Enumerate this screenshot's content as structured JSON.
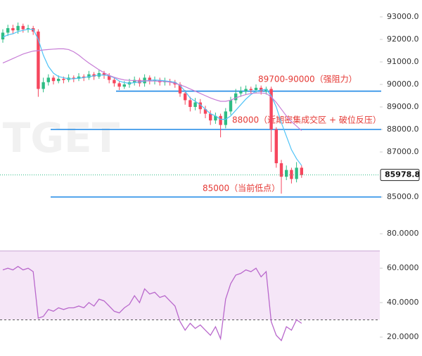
{
  "chart_data": [
    {
      "type": "candlestick",
      "watermark": "BITGET",
      "open": [
        92000,
        92300,
        92500,
        92400,
        92600,
        92450,
        92500,
        92350,
        89800,
        90100,
        90300,
        90150,
        90250,
        90200,
        90300,
        90250,
        90350,
        90300,
        90450,
        90350,
        90500,
        90400,
        90200,
        90050,
        89900,
        90000,
        90100,
        90200,
        90050,
        90300,
        90150,
        90200,
        90100,
        90150,
        90100,
        90000,
        89600,
        89300,
        89000,
        89200,
        88900,
        88700,
        88400,
        88600,
        88200,
        88800,
        89300,
        89600,
        89700,
        89800,
        89750,
        89850,
        89700,
        89800,
        88000,
        86500,
        85900,
        86200,
        85800,
        86300
      ],
      "high": [
        92450,
        92650,
        92650,
        92750,
        92700,
        92650,
        92600,
        92450,
        90300,
        90450,
        90400,
        90400,
        90350,
        90450,
        90400,
        90500,
        90450,
        90600,
        90550,
        90650,
        90600,
        90500,
        90300,
        90150,
        90150,
        90250,
        90350,
        90300,
        90450,
        90400,
        90350,
        90300,
        90300,
        90250,
        90200,
        90100,
        89750,
        89450,
        89400,
        89350,
        89050,
        88850,
        88750,
        88700,
        88950,
        89450,
        89800,
        89900,
        89950,
        89900,
        90000,
        89950,
        89900,
        89900,
        88100,
        86650,
        86400,
        86300,
        86550,
        86400
      ],
      "low": [
        91850,
        92150,
        92250,
        92250,
        92300,
        92300,
        92200,
        89450,
        89650,
        89950,
        90000,
        90050,
        90050,
        90100,
        90100,
        90150,
        90150,
        90200,
        90200,
        90250,
        90250,
        90050,
        89900,
        89750,
        89800,
        89850,
        89950,
        89900,
        89900,
        90000,
        90000,
        89950,
        89950,
        89950,
        89850,
        89450,
        89100,
        88800,
        88850,
        88700,
        88500,
        88200,
        88250,
        87650,
        88050,
        88650,
        89150,
        89450,
        89550,
        89600,
        89600,
        89550,
        89550,
        87000,
        86300,
        85150,
        85750,
        85600,
        85650,
        85850
      ],
      "close": [
        92300,
        92500,
        92400,
        92600,
        92450,
        92500,
        92350,
        89800,
        90100,
        90300,
        90150,
        90250,
        90200,
        90300,
        90250,
        90350,
        90300,
        90450,
        90350,
        90500,
        90400,
        90200,
        90050,
        89900,
        90000,
        90100,
        90200,
        90050,
        90300,
        90150,
        90200,
        90100,
        90150,
        90100,
        90000,
        89600,
        89300,
        89000,
        89200,
        88900,
        88700,
        88400,
        88600,
        88200,
        88800,
        89300,
        89600,
        89700,
        89800,
        89750,
        89850,
        89700,
        89800,
        88000,
        86500,
        85900,
        86200,
        85800,
        86300,
        85978.8
      ],
      "up_color": "#2ebd85",
      "down_color": "#f6465d",
      "overlays": [
        {
          "color": "#4fc3f7",
          "values": [
            92100,
            92200,
            92250,
            92350,
            92400,
            92450,
            92450,
            92000,
            91300,
            90800,
            90500,
            90350,
            90300,
            90250,
            90250,
            90280,
            90300,
            90350,
            90380,
            90420,
            90420,
            90380,
            90300,
            90150,
            90080,
            90050,
            90080,
            90100,
            90150,
            90180,
            90200,
            90180,
            90160,
            90130,
            90100,
            89950,
            89700,
            89400,
            89250,
            89100,
            88900,
            88700,
            88600,
            88450,
            88450,
            88600,
            88850,
            89100,
            89350,
            89550,
            89700,
            89750,
            89780,
            89500,
            89000,
            88300,
            87700,
            87100,
            86700,
            86400
          ]
        },
        {
          "color": "#c77dd6",
          "values": [
            90950,
            91050,
            91150,
            91250,
            91350,
            91420,
            91480,
            91500,
            91530,
            91550,
            91570,
            91580,
            91580,
            91550,
            91450,
            91300,
            91120,
            90950,
            90800,
            90650,
            90520,
            90400,
            90320,
            90250,
            90200,
            90180,
            90170,
            90160,
            90160,
            90150,
            90150,
            90140,
            90130,
            90100,
            90050,
            89980,
            89900,
            89800,
            89700,
            89600,
            89500,
            89400,
            89320,
            89250,
            89250,
            89300,
            89400,
            89480,
            89550,
            89600,
            89620,
            89620,
            89600,
            89450,
            89200,
            88900,
            88600,
            88350,
            88150,
            87950
          ]
        }
      ],
      "levels": [
        {
          "value": 89700,
          "label": "89700-90000（强阻力）"
        },
        {
          "value": 88000,
          "label": "88000（近期密集成交区 + 破位反压）"
        },
        {
          "value": 85000,
          "label": "85000（当前低点）"
        }
      ],
      "level_color": "#1e88e5",
      "label_color": "#e53935",
      "ylim": [
        83750,
        93750
      ],
      "yticks": [
        {
          "value": 93000,
          "label": "93000.0"
        },
        {
          "value": 92000,
          "label": "92000.0"
        },
        {
          "value": 91000,
          "label": "91000.0"
        },
        {
          "value": 90000,
          "label": "90000.0"
        },
        {
          "value": 89000,
          "label": "89000.0"
        },
        {
          "value": 88000,
          "label": "88000.0"
        },
        {
          "value": 87000,
          "label": "87000.0"
        },
        {
          "value": 85000,
          "label": "85000.0"
        }
      ]
    },
    {
      "type": "line",
      "color": "#b968cc",
      "values": [
        59,
        60,
        59,
        61,
        59,
        60,
        58,
        31,
        32,
        36,
        35,
        37,
        36,
        37,
        37,
        38,
        37,
        40,
        38,
        42,
        41,
        38,
        35,
        34,
        37,
        39,
        44,
        40,
        48,
        45,
        46,
        43,
        44,
        41,
        38,
        29,
        24,
        28,
        25,
        27,
        24,
        21,
        26,
        19,
        42,
        51,
        56,
        57,
        59,
        58,
        60,
        55,
        58,
        29,
        21,
        18,
        26,
        24,
        30,
        28
      ],
      "band": [
        30,
        70
      ],
      "band_color": "#f5e6f7",
      "ylim": [
        9,
        85
      ],
      "yticks": [
        {
          "value": 80,
          "label": "80.0000"
        },
        {
          "value": 60,
          "label": "60.0000"
        },
        {
          "value": 40,
          "label": "40.0000"
        },
        {
          "value": 20,
          "label": "20.0000"
        }
      ]
    }
  ]
}
